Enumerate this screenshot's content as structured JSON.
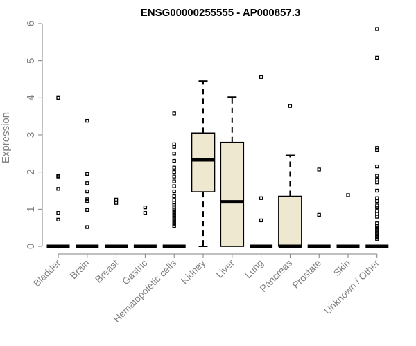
{
  "chart_data": {
    "type": "box",
    "title": "ENSG00000255555 - AP000857.3",
    "xlabel": "",
    "ylabel": "Expression",
    "ylim": [
      0,
      6
    ],
    "yticks": [
      "0",
      "1",
      "2",
      "3",
      "4",
      "5",
      "6"
    ],
    "grid": false,
    "box_fill": "#efe8d0",
    "categories": [
      "Bladder",
      "Brain",
      "Breast",
      "Gastric",
      "Hematopoietic cells",
      "Kidney",
      "Liver",
      "Lung",
      "Pancreas",
      "Prostate",
      "Skin",
      "Unknown / Other"
    ],
    "boxes": [
      {
        "category": "Bladder",
        "min": 0,
        "q1": 0,
        "median": 0,
        "q3": 0,
        "max": 0,
        "outliers": [
          4.0,
          1.9,
          1.88,
          1.55,
          0.9,
          0.72
        ]
      },
      {
        "category": "Brain",
        "min": 0,
        "q1": 0,
        "median": 0,
        "q3": 0,
        "max": 0,
        "outliers": [
          3.38,
          1.95,
          1.7,
          1.48,
          1.27,
          1.22,
          0.98,
          0.52
        ]
      },
      {
        "category": "Breast",
        "min": 0,
        "q1": 0,
        "median": 0,
        "q3": 0,
        "max": 0,
        "outliers": [
          1.26,
          1.17
        ]
      },
      {
        "category": "Gastric",
        "min": 0,
        "q1": 0,
        "median": 0,
        "q3": 0,
        "max": 0,
        "outliers": [
          1.05,
          0.9
        ]
      },
      {
        "category": "Hematopoietic cells",
        "min": 0,
        "q1": 0,
        "median": 0,
        "q3": 0,
        "max": 0,
        "outliers": [
          3.58,
          2.75,
          2.68,
          2.5,
          2.3,
          2.12,
          2.0,
          1.88,
          1.75,
          1.62,
          1.48,
          1.35,
          1.25,
          1.18,
          1.12,
          1.06,
          1.0,
          0.95,
          0.9,
          0.85,
          0.8,
          0.75,
          0.7,
          0.65,
          0.6,
          0.55
        ]
      },
      {
        "category": "Kidney",
        "min": 0,
        "q1": 1.47,
        "median": 2.33,
        "q3": 3.05,
        "max": 4.45,
        "outliers": []
      },
      {
        "category": "Liver",
        "min": 0,
        "q1": 0,
        "median": 1.2,
        "q3": 2.8,
        "max": 4.02,
        "outliers": []
      },
      {
        "category": "Lung",
        "min": 0,
        "q1": 0,
        "median": 0,
        "q3": 0,
        "max": 0,
        "outliers": [
          4.56,
          1.3,
          0.7
        ]
      },
      {
        "category": "Pancreas",
        "min": 0,
        "q1": 0,
        "median": 0,
        "q3": 1.35,
        "max": 2.45,
        "outliers": [
          3.78
        ]
      },
      {
        "category": "Prostate",
        "min": 0,
        "q1": 0,
        "median": 0,
        "q3": 0,
        "max": 0,
        "outliers": [
          2.07,
          0.85
        ]
      },
      {
        "category": "Skin",
        "min": 0,
        "q1": 0,
        "median": 0,
        "q3": 0,
        "max": 0,
        "outliers": [
          1.38
        ]
      },
      {
        "category": "Unknown / Other",
        "min": 0,
        "q1": 0,
        "median": 0,
        "q3": 0,
        "max": 0,
        "outliers": [
          5.85,
          5.08,
          2.65,
          2.6,
          2.15,
          1.9,
          1.8,
          1.72,
          1.5,
          1.3,
          1.22,
          1.1,
          1.05,
          0.95,
          0.88,
          0.8,
          0.62,
          0.55,
          0.5,
          0.45,
          0.4,
          0.35,
          0.3,
          0.25,
          0.2
        ]
      }
    ]
  }
}
